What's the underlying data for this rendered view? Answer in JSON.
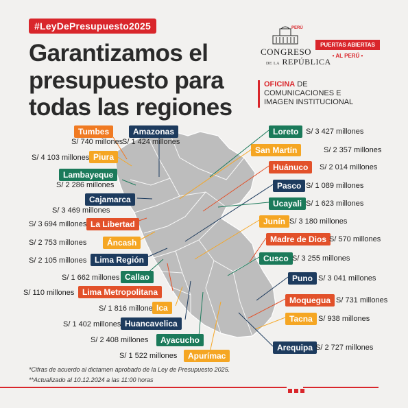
{
  "hashtag": "#LeyDePresupuesto2025",
  "headline": [
    "Garantizamos el",
    "presupuesto para",
    "todas las regiones"
  ],
  "logo": {
    "country": "PERÚ",
    "line1": "CONGRESO",
    "line2": "REPÚBLICA",
    "prefix": "DE LA"
  },
  "puertas": {
    "top": "PUERTAS ABIERTAS",
    "bottom": "• AL PERÚ •"
  },
  "oficina": {
    "highlight": "OFICINA",
    "line1_rest": " DE",
    "line2": "COMUNICACIONES E",
    "line3": "IMAGEN INSTITUCIONAL"
  },
  "colors": {
    "red": "#d9262b",
    "orange": "#f07a22",
    "yellow": "#f5a623",
    "green": "#1b7a5a",
    "navy": "#1d3b5e",
    "map_gray": "#b8b8b8"
  },
  "regions": [
    {
      "name": "Tumbes",
      "amount": "S/ 740 millones",
      "color": "orange"
    },
    {
      "name": "Amazonas",
      "amount": "S/ 1 424 millones",
      "color": "navy"
    },
    {
      "name": "Piura",
      "amount": "S/ 4 103 millones",
      "color": "yellow"
    },
    {
      "name": "Lambayeque",
      "amount": "S/ 2 286 millones",
      "color": "green"
    },
    {
      "name": "Cajamarca",
      "amount": "S/ 3 469 millones",
      "color": "navy"
    },
    {
      "name": "La Libertad",
      "amount": "S/ 3 694 millones",
      "color": "red"
    },
    {
      "name": "Áncash",
      "amount": "S/ 2 753 millones",
      "color": "yellow"
    },
    {
      "name": "Lima Región",
      "amount": "S/ 2 105 millones",
      "color": "navy"
    },
    {
      "name": "Callao",
      "amount": "S/ 1 662 millones",
      "color": "green"
    },
    {
      "name": "Lima Metropolitana",
      "amount": "S/ 110  millones",
      "color": "red"
    },
    {
      "name": "Ica",
      "amount": "S/ 1 816 millones",
      "color": "yellow"
    },
    {
      "name": "Huancavelica",
      "amount": "S/ 1 402 millones",
      "color": "navy"
    },
    {
      "name": "Ayacucho",
      "amount": "S/ 2 408 millones",
      "color": "green"
    },
    {
      "name": "Apurímac",
      "amount": "S/ 1 522 millones",
      "color": "yellow"
    },
    {
      "name": "Loreto",
      "amount": "S/ 3 427 millones",
      "color": "green"
    },
    {
      "name": "San Martín",
      "amount": "S/ 2 357 millones",
      "color": "yellow"
    },
    {
      "name": "Huánuco",
      "amount": "S/ 2 014 millones",
      "color": "red"
    },
    {
      "name": "Pasco",
      "amount": "S/ 1 089 millones",
      "color": "navy"
    },
    {
      "name": "Ucayali",
      "amount": "S/ 1 623 millones",
      "color": "green"
    },
    {
      "name": "Junín",
      "amount": "S/ 3 180 millones",
      "color": "yellow"
    },
    {
      "name": "Madre de Dios",
      "amount": "S/ 570 millones",
      "color": "red"
    },
    {
      "name": "Cusco",
      "amount": "S/ 3 255 millones",
      "color": "green"
    },
    {
      "name": "Puno",
      "amount": "S/ 3 041 millones",
      "color": "navy"
    },
    {
      "name": "Moquegua",
      "amount": "S/  731 millones",
      "color": "red"
    },
    {
      "name": "Tacna",
      "amount": "S/ 938 millones",
      "color": "yellow"
    },
    {
      "name": "Arequipa",
      "amount": "S/ 2 727 millones",
      "color": "navy"
    }
  ],
  "footnotes": [
    "*Cifras de acuerdo al dictamen aprobado de la Ley de Presupuesto 2025.",
    "**Actualizado al 10.12.2024 a las 11:00 horas"
  ]
}
